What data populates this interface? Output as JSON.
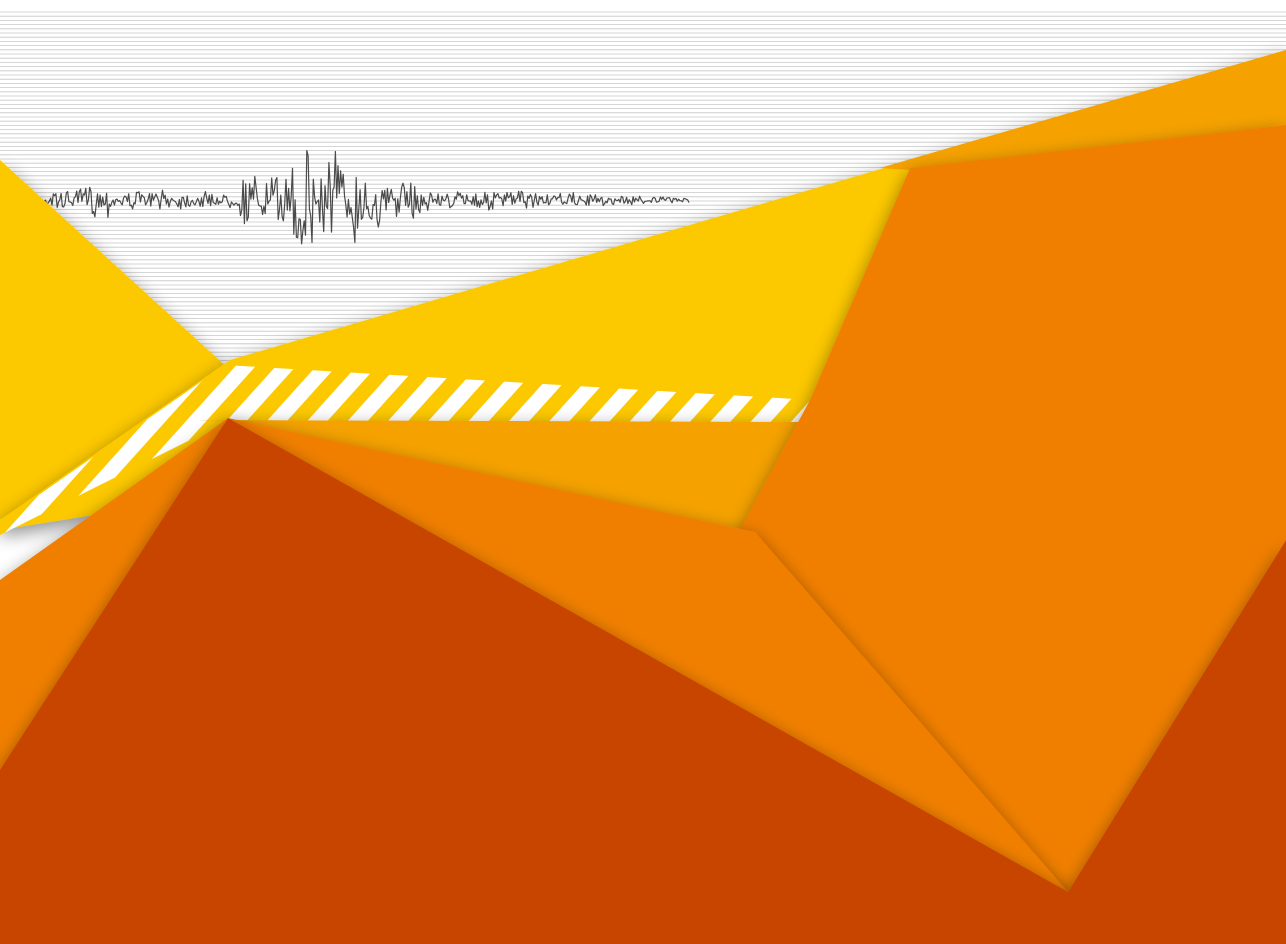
{
  "artwork": {
    "subject": "seismograph-trace-over-folded-paper",
    "colors": {
      "background": "#ffffff",
      "grid_line": "#c8c8c8",
      "trace": "#4a4a4a",
      "yellow": "#fcc800",
      "amber": "#f5a200",
      "orange": "#f07f00",
      "red_orange": "#c84400",
      "stripe_light": "#ffffff"
    }
  }
}
